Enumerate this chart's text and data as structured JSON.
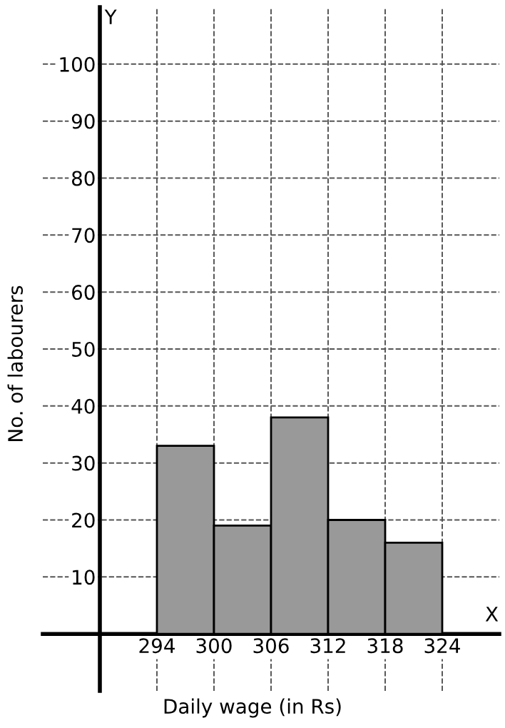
{
  "chart_data": {
    "type": "histogram",
    "xlabel": "Daily wage (in Rs)",
    "ylabel": "No. of labourers",
    "bins": [
      294,
      300,
      306,
      312,
      318,
      324
    ],
    "values": [
      33,
      19,
      38,
      20,
      16
    ],
    "color": "#999999",
    "xlim": [
      282,
      330
    ],
    "ylim": [
      -10,
      110
    ],
    "xticks": [
      294,
      300,
      306,
      312,
      318,
      324
    ],
    "yticks": [
      10,
      20,
      30,
      40,
      50,
      60,
      70,
      80,
      90,
      100
    ],
    "grid": true,
    "annotations": [
      "X",
      "Y"
    ]
  }
}
